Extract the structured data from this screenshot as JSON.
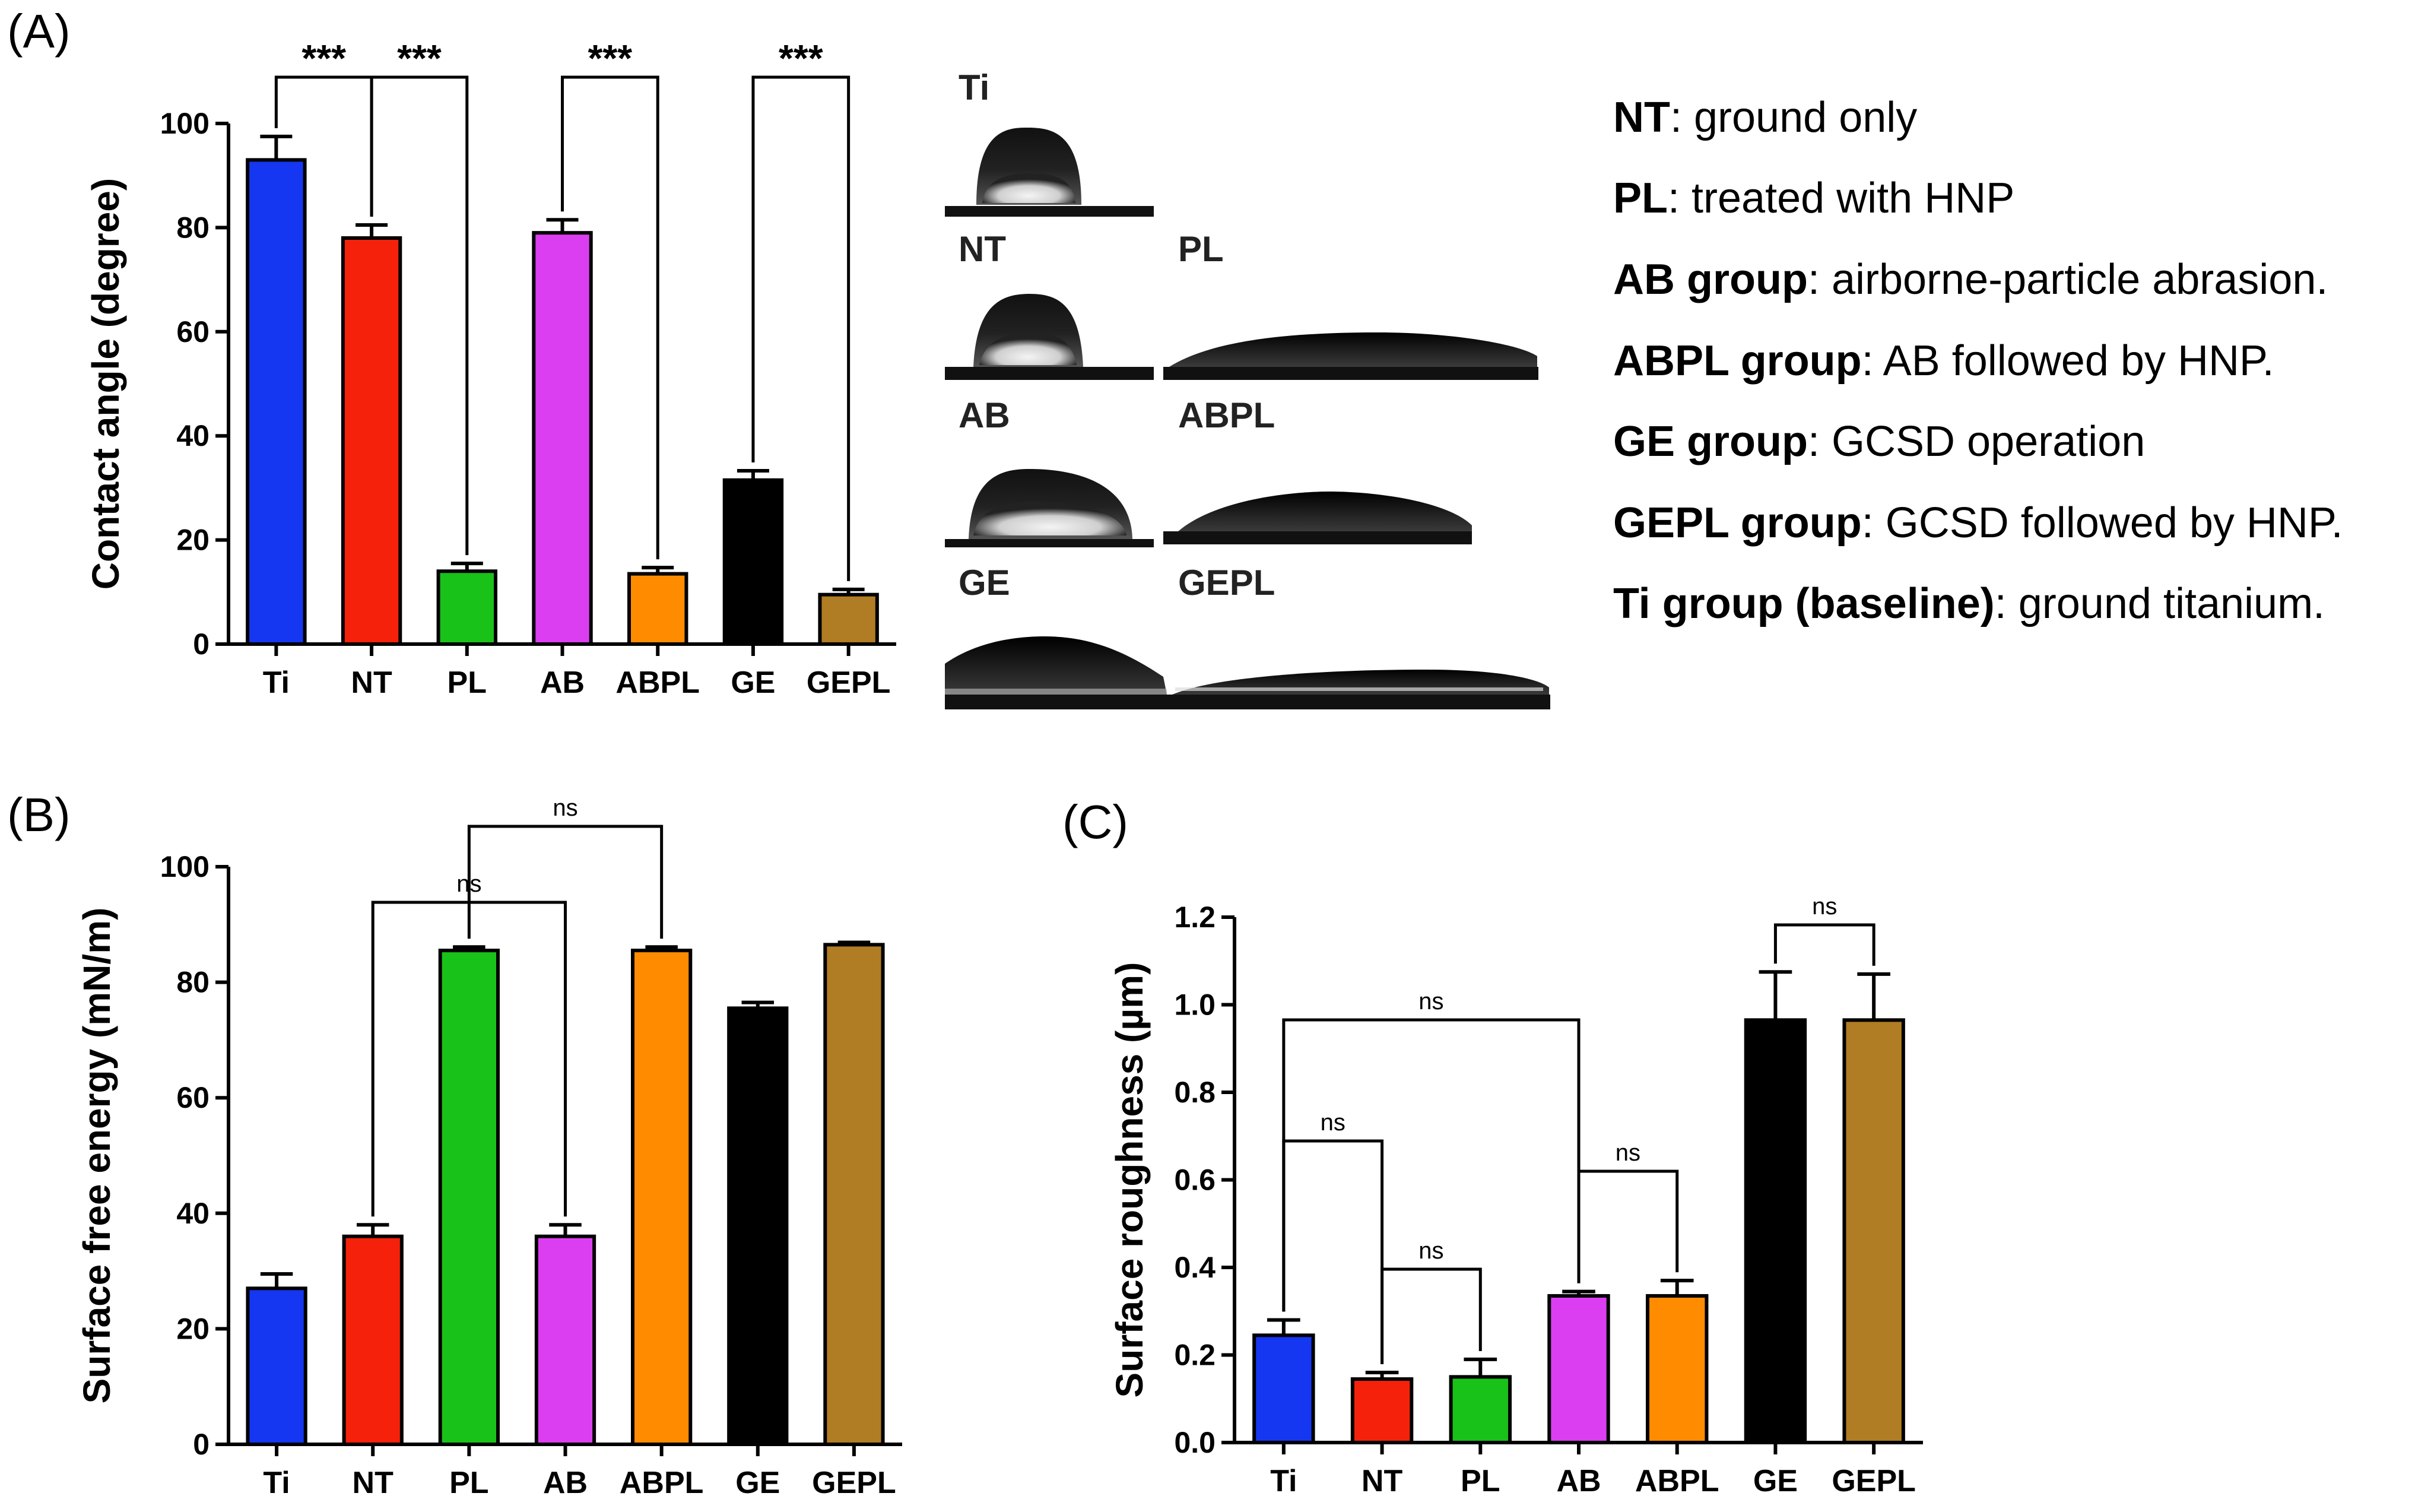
{
  "panel_letters": [
    "(A)",
    "(B)",
    "(C)"
  ],
  "chart_data": [
    {
      "panel": "(A)",
      "type": "bar",
      "title": "",
      "xlabel": "",
      "ylabel": "Contact angle (degree)",
      "ylim": [
        0,
        100
      ],
      "yticks": [
        "0",
        "20",
        "40",
        "60",
        "80",
        "100"
      ],
      "categories": [
        "Ti",
        "NT",
        "PL",
        "AB",
        "ABPL",
        "GE",
        "GEPL"
      ],
      "values": [
        93,
        78,
        14,
        79,
        13.5,
        31.5,
        9.5
      ],
      "errors": [
        4.5,
        2.5,
        1.5,
        2.5,
        1.2,
        1.8,
        1
      ],
      "colors": [
        "#1537f2",
        "#f5210a",
        "#19c219",
        "#db3ef0",
        "#ff8c00",
        "#000000",
        "#b07c24"
      ],
      "annotations": [
        {
          "from": "Ti",
          "to": "NT",
          "label": "***"
        },
        {
          "from": "NT",
          "to": "PL",
          "label": "***"
        },
        {
          "from": "AB",
          "to": "ABPL",
          "label": "***"
        },
        {
          "from": "GE",
          "to": "GEPL",
          "label": "***"
        }
      ]
    },
    {
      "panel": "(B)",
      "type": "bar",
      "title": "",
      "xlabel": "",
      "ylabel": "Surface free energy (mN/m)",
      "ylim": [
        0,
        100
      ],
      "yticks": [
        "0",
        "20",
        "40",
        "60",
        "80",
        "100"
      ],
      "categories": [
        "Ti",
        "NT",
        "PL",
        "AB",
        "ABPL",
        "GE",
        "GEPL"
      ],
      "values": [
        27,
        36,
        85.5,
        36,
        85.5,
        75.5,
        86.5
      ],
      "errors": [
        2.5,
        2,
        0.6,
        2,
        0.6,
        1,
        0.4
      ],
      "colors": [
        "#1537f2",
        "#f5210a",
        "#19c219",
        "#db3ef0",
        "#ff8c00",
        "#000000",
        "#b07c24"
      ],
      "annotations": [
        {
          "from": "NT",
          "to": "AB",
          "label": "ns"
        },
        {
          "from": "PL",
          "to": "ABPL",
          "label": "ns"
        }
      ]
    },
    {
      "panel": "(C)",
      "type": "bar",
      "title": "",
      "xlabel": "",
      "ylabel": "Surface roughness (µm)",
      "ylim": [
        0,
        1.2
      ],
      "yticks": [
        "0.0",
        "0.2",
        "0.4",
        "0.6",
        "0.8",
        "1.0",
        "1.2"
      ],
      "categories": [
        "Ti",
        "NT",
        "PL",
        "AB",
        "ABPL",
        "GE",
        "GEPL"
      ],
      "values": [
        0.245,
        0.145,
        0.15,
        0.335,
        0.335,
        0.965,
        0.965
      ],
      "errors": [
        0.035,
        0.015,
        0.04,
        0.01,
        0.035,
        0.11,
        0.105
      ],
      "colors": [
        "#1537f2",
        "#f5210a",
        "#19c219",
        "#db3ef0",
        "#ff8c00",
        "#000000",
        "#b07c24"
      ],
      "annotations": [
        {
          "from": "Ti",
          "to": "AB",
          "label": "ns"
        },
        {
          "from": "Ti",
          "to": "NT",
          "label": "ns"
        },
        {
          "from": "NT",
          "to": "PL",
          "label": "ns"
        },
        {
          "from": "AB",
          "to": "ABPL",
          "label": "ns"
        },
        {
          "from": "GE",
          "to": "GEPL",
          "label": "ns"
        }
      ]
    }
  ],
  "droplet_labels": [
    "Ti",
    "NT",
    "PL",
    "AB",
    "ABPL",
    "GE",
    "GEPL"
  ],
  "legend": [
    {
      "key": "NT",
      "text": ": ground only"
    },
    {
      "key": "PL",
      "text": ": treated with HNP"
    },
    {
      "key": "AB group",
      "text": ": airborne-particle abrasion."
    },
    {
      "key": "ABPL group",
      "text": ": AB followed by HNP."
    },
    {
      "key": "GE group",
      "text": ": GCSD operation"
    },
    {
      "key": "GEPL group",
      "text": ": GCSD followed by HNP."
    },
    {
      "key": "Ti group (baseline)",
      "text": ": ground titanium."
    }
  ]
}
